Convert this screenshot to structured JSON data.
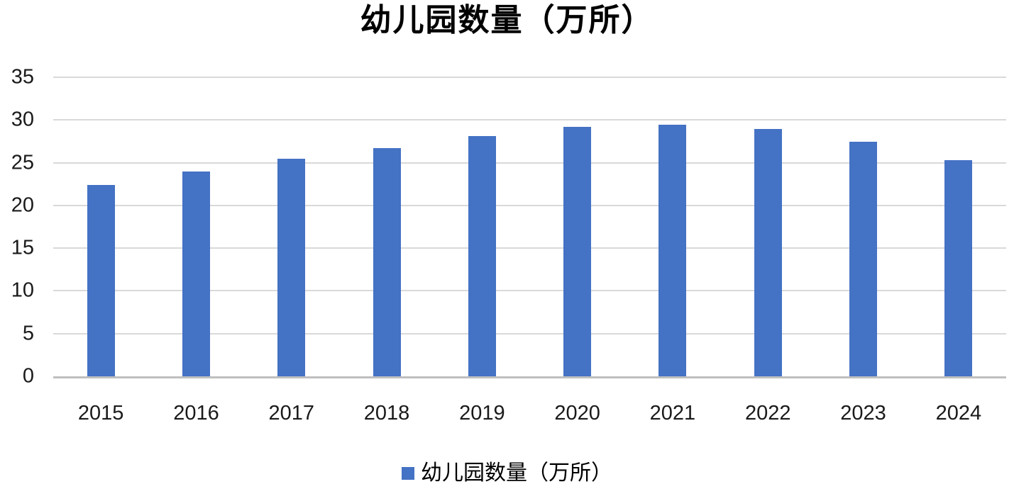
{
  "title": "幼儿园数量（万所）",
  "legend": {
    "label": "幼儿园数量（万所）",
    "position": "bottom"
  },
  "colors": {
    "bar": "#4472C4",
    "gridline": "#D9D9D9",
    "axis_line": "#BFBFBF",
    "text": "#1a1a1a"
  },
  "chart_data": {
    "type": "bar",
    "title": "幼儿园数量（万所）",
    "series_name": "幼儿园数量（万所）",
    "categories": [
      "2015",
      "2016",
      "2017",
      "2018",
      "2019",
      "2020",
      "2021",
      "2022",
      "2023",
      "2024"
    ],
    "values": [
      22.37,
      23.98,
      25.5,
      26.67,
      28.12,
      29.17,
      29.48,
      28.92,
      27.44,
      25.33
    ],
    "xlabel": "",
    "ylabel": "",
    "ylim": [
      0,
      35
    ],
    "yticks": [
      0,
      5,
      10,
      15,
      20,
      25,
      30,
      35
    ],
    "grid": "horizontal",
    "legend_position": "bottom"
  }
}
